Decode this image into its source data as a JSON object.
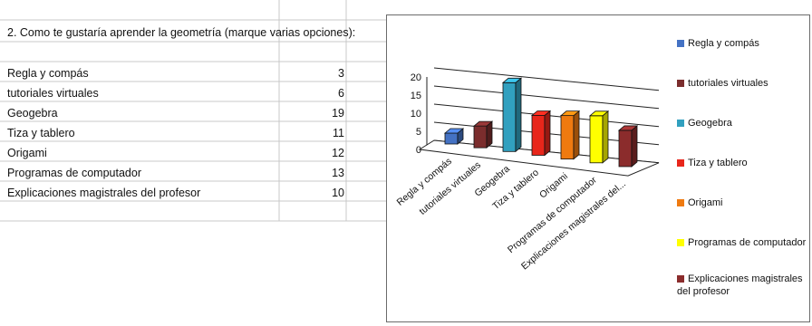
{
  "table": {
    "question": "2. Como te gustaría aprender la geometría (marque varias opciones):",
    "rows": [
      {
        "label": "Regla y compás",
        "value": "3"
      },
      {
        "label": "tutoriales virtuales",
        "value": "6"
      },
      {
        "label": "Geogebra",
        "value": "19"
      },
      {
        "label": "Tiza y tablero",
        "value": "11"
      },
      {
        "label": "Origami",
        "value": "12"
      },
      {
        "label": "Programas de computador",
        "value": "13"
      },
      {
        "label": "Explicaciones magistrales del profesor",
        "value": "10"
      }
    ]
  },
  "chart_data": {
    "type": "bar",
    "style": "3d-column",
    "categories": [
      "Regla y compás",
      "tutoriales virtuales",
      "Geogebra",
      "Tiza y tablero",
      "Origami",
      "Programas de computador",
      "Explicaciones magistrales del..."
    ],
    "values": [
      3,
      6,
      19,
      11,
      12,
      13,
      10
    ],
    "colors": [
      "#4472c4",
      "#7b2d2d",
      "#31a0bf",
      "#e8261b",
      "#ef7a10",
      "#ffff00",
      "#8b2c2c"
    ],
    "yticks": [
      "0",
      "5",
      "10",
      "15",
      "20"
    ],
    "ylim": [
      0,
      20
    ],
    "legend_position": "right",
    "legend": [
      "Regla y compás",
      "tutoriales virtuales",
      "Geogebra",
      "Tiza y tablero",
      "Origami",
      "Programas de computador",
      "Explicaciones magistrales del profesor"
    ]
  }
}
